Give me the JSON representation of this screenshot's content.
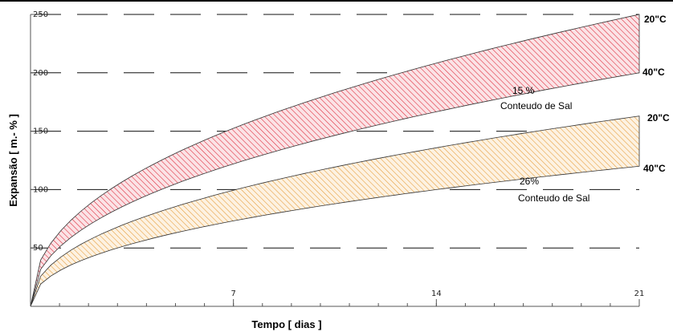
{
  "chart_data": {
    "type": "area",
    "xlabel": "Tempo [ dias ]",
    "ylabel": "Expansão [ m.- % ]",
    "xlim": [
      0,
      21
    ],
    "ylim": [
      0,
      250
    ],
    "x_ticks": [
      "7",
      "14",
      "21"
    ],
    "y_ticks": [
      "50",
      "100",
      "150",
      "200",
      "250"
    ],
    "grid": "horizontal dashed",
    "bands": [
      {
        "label_line1": "15 %",
        "label_line2": "Conteudo de Sal",
        "upper_label": "20\"C",
        "lower_label": "40\"C",
        "upper_end": 250,
        "lower_end": 200,
        "color": "#e0303f",
        "fill": "#fbe3e6"
      },
      {
        "label_line1": "26%",
        "label_line2": "Conteudo de Sal",
        "upper_label": "20\"C",
        "lower_label": "40\"C",
        "upper_end": 163,
        "lower_end": 120,
        "color": "#e8a040",
        "fill": "#fdf2e2"
      }
    ]
  }
}
